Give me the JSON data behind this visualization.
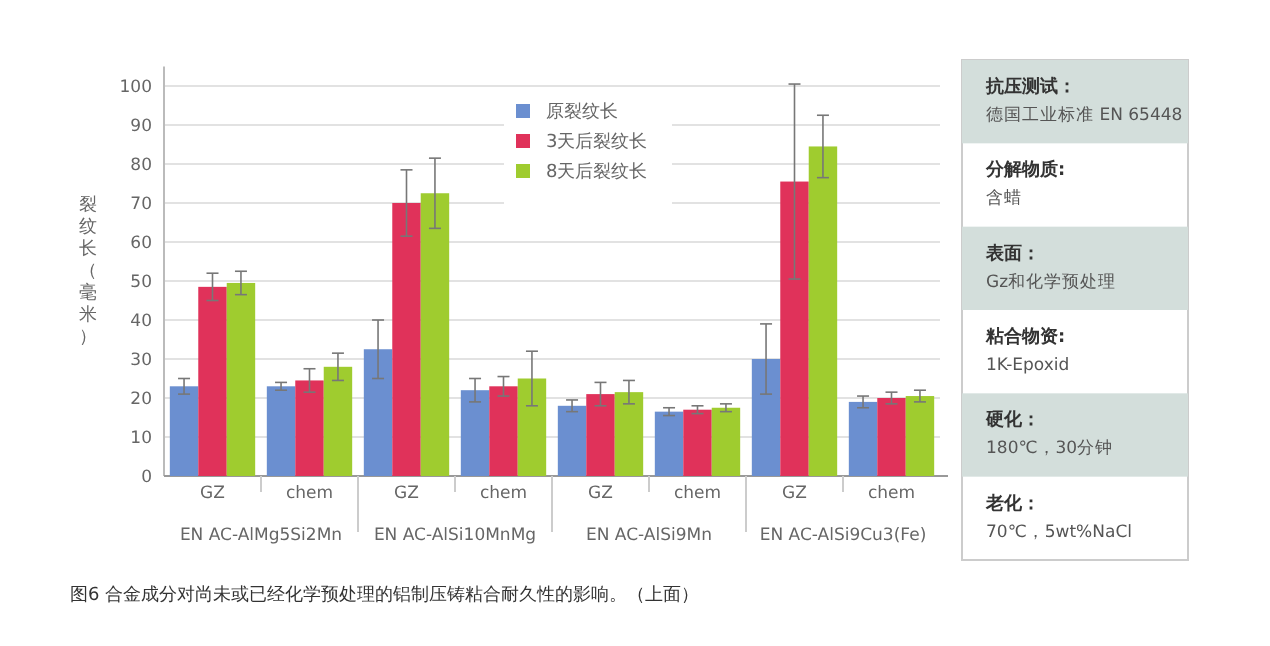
{
  "chart_data": [
    {
      "type": "bar",
      "ylabel": "裂纹长（毫米）",
      "categories": [
        "GZ",
        "chem",
        "GZ",
        "chem",
        "GZ",
        "chem",
        "GZ",
        "chem"
      ],
      "series": [
        {
          "name": "原裂纹长",
          "color": "#6b8fd0",
          "values": [
            23,
            23,
            32.5,
            22,
            18,
            16.5,
            30,
            19
          ],
          "errors": [
            2,
            1,
            7.5,
            3,
            1.5,
            1,
            9,
            1.5
          ]
        },
        {
          "name": "3天后裂纹长",
          "color": "#e0325a",
          "values": [
            48.5,
            24.5,
            70,
            23,
            21,
            17,
            75.5,
            20
          ],
          "errors": [
            3.5,
            3,
            8.5,
            2.5,
            3,
            1,
            25,
            1.5
          ]
        },
        {
          "name": "8天后裂纹长",
          "color": "#9fcc2f",
          "values": [
            49.5,
            28,
            72.5,
            25,
            21.5,
            17.5,
            84.5,
            20.5
          ],
          "errors": [
            3,
            3.5,
            9,
            7,
            3,
            1,
            8,
            1.5
          ]
        }
      ],
      "ylim": [
        0,
        105
      ],
      "yticks": [
        0,
        10,
        20,
        30,
        40,
        50,
        60,
        70,
        80,
        90,
        100
      ],
      "grid": "y",
      "legend": "top",
      "annotations": [
        "EN AC-AlMg5Si2Mn",
        "EN AC-AlSi10MnMg",
        "EN AC-AlSi9Mn",
        "EN AC-AlSi9Cu3(Fe)",
        "图6 合金成分对尚未或已经化学预处理的铝制压铸粘合耐久性的影响。（上面）"
      ]
    },
    {
      "type": "other",
      "annotations": [
        "抗压测试：",
        "德国工业标准 EN 65448",
        "分解物质:",
        "含蜡",
        "表面：",
        "Gz和化学预处理",
        "粘合物资:",
        "1K-Epoxid",
        "硬化：",
        "180℃，30分钟",
        "老化：",
        "70℃，5wt%NaCl"
      ]
    }
  ]
}
